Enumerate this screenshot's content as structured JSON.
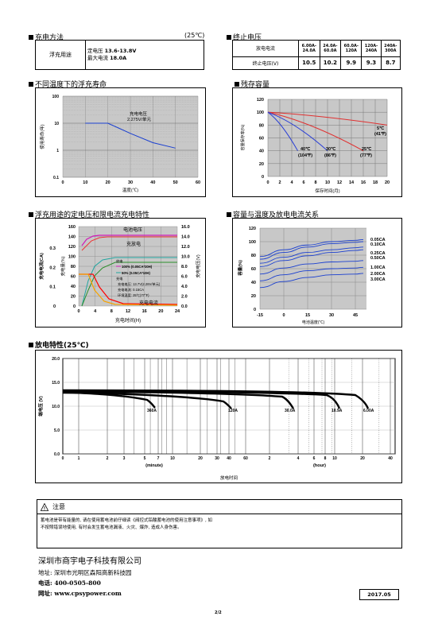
{
  "sections": {
    "float_charge": "充电方法",
    "float_charge_temp": "(25℃)",
    "end_voltage": "终止电压",
    "float_life": "不同温度下的浮充寿命",
    "remaining_capacity": "残存容量",
    "float_charge_curve": "浮充用途的定电压和限电流充电特性",
    "capacity_temp": "容量与温度及放电电流关系",
    "discharge": "放电特性(25℃)"
  },
  "charge_table": {
    "label": "浮充用途",
    "line1_prefix": "定电压",
    "line1_value": "13.6-13.8V",
    "line2_prefix": "最大电流",
    "line2_value": "18.0A"
  },
  "end_voltage_table": {
    "row1_label": "放电电流",
    "row2_label": "终止电压(V)",
    "currents": [
      "6.00A-24.0A",
      "24.0A-60.0A",
      "60.0A-120A",
      "120A-240A",
      "240A-300A"
    ],
    "voltages": [
      "10.5",
      "10.2",
      "9.9",
      "9.3",
      "8.7"
    ]
  },
  "chart_data": [
    {
      "type": "line",
      "ylabel": "使用寿命(年)",
      "xlabel": "温度(℃)",
      "x_ticks": [
        "0",
        "10",
        "20",
        "30",
        "40",
        "50",
        "60"
      ],
      "y_ticks": [
        "0.1",
        "1",
        "10",
        "100"
      ],
      "log_y": true,
      "annotation_line1": "充电电压",
      "annotation_line2": "2.275V/单元",
      "series": [
        {
          "x": [
            10,
            20,
            25,
            30,
            40,
            50
          ],
          "y": [
            10,
            10,
            6.5,
            4.2,
            1.9,
            1.2
          ]
        }
      ]
    },
    {
      "type": "line",
      "ylabel": "容量保存率(%)",
      "xlabel": "保存时间(月)",
      "x_ticks": [
        "0",
        "2",
        "4",
        "6",
        "8",
        "10",
        "12",
        "14",
        "16",
        "18",
        "20"
      ],
      "y_ticks": [
        "0",
        "20",
        "40",
        "60",
        "80",
        "100",
        "120"
      ],
      "series_labels": [
        {
          "t1": "5℃",
          "t2": "(41℉)"
        },
        {
          "t1": "25℃",
          "t2": "(77℉)"
        },
        {
          "t1": "30℃",
          "t2": "(86℉)"
        },
        {
          "t1": "40℃",
          "t2": "(104℉)"
        }
      ],
      "series": [
        {
          "x": [
            0,
            20
          ],
          "y": [
            100,
            80
          ]
        },
        {
          "x": [
            0,
            16
          ],
          "y": [
            100,
            40
          ]
        },
        {
          "x": [
            0,
            10
          ],
          "y": [
            100,
            40
          ]
        },
        {
          "x": [
            0,
            5
          ],
          "y": [
            100,
            40
          ]
        }
      ]
    },
    {
      "type": "line",
      "xlabel": "充电时间(H)",
      "ylabel_left_outer": "充电电流(CA)",
      "ylabel_left_inner": "充电量(%)",
      "ylabel_right": "充电电压(V)",
      "x_ticks": [
        "0",
        "4",
        "8",
        "12",
        "16",
        "20",
        "24"
      ],
      "y_ticks_cap": [
        "0",
        "20",
        "40",
        "60",
        "80",
        "100",
        "120",
        "140",
        "160"
      ],
      "y_ticks_ca": [
        "0",
        "0.1",
        "0.2",
        "0.3"
      ],
      "y_ticks_v": [
        "0.0",
        "2.0",
        "4.0",
        "6.0",
        "8.0",
        "10.0",
        "12.0",
        "14.0",
        "16.0"
      ],
      "label_voltage": "电池电压",
      "label_charge": "充放电",
      "label_current": "充电电流",
      "legend": {
        "l1": "放电",
        "l2": "100% (0.05CA*20H)",
        "l3": "50% (0.05CA*10H)",
        "l4": "充电",
        "l5": "充电电压: 13.7V(2.28V/单元)",
        "l6": "充电电流: 0.15CA",
        "l7": "环境温度: 25℃(77℉)"
      }
    },
    {
      "type": "line",
      "ylabel": "容量(%)",
      "xlabel": "电池温度(℃)",
      "x_ticks": [
        "-15",
        "0",
        "15",
        "30",
        "45"
      ],
      "y_ticks": [
        "0",
        "20",
        "40",
        "60",
        "80",
        "100",
        "120"
      ],
      "series_names": [
        "0.05CA",
        "0.10CA",
        "0.25CA",
        "0.50CA",
        "1.00CA",
        "2.00CA",
        "3.00CA"
      ],
      "series": [
        {
          "x": [
            -15,
            0,
            15,
            30,
            45,
            50
          ],
          "y": [
            78,
            88,
            95,
            100,
            102,
            103
          ]
        },
        {
          "x": [
            -15,
            0,
            15,
            30,
            45,
            50
          ],
          "y": [
            74,
            84,
            92,
            97,
            99,
            100
          ]
        },
        {
          "x": [
            -15,
            0,
            15,
            30,
            45,
            50
          ],
          "y": [
            68,
            77,
            84,
            88,
            91,
            92
          ]
        },
        {
          "x": [
            -15,
            0,
            15,
            30,
            45,
            50
          ],
          "y": [
            63,
            72,
            79,
            84,
            87,
            88
          ]
        },
        {
          "x": [
            -15,
            0,
            15,
            30,
            45,
            50
          ],
          "y": [
            52,
            61,
            67,
            70,
            71,
            72
          ]
        },
        {
          "x": [
            -15,
            0,
            15,
            30,
            45,
            50
          ],
          "y": [
            42,
            51,
            57,
            60,
            61,
            62
          ]
        },
        {
          "x": [
            -15,
            0,
            15,
            30,
            45,
            50
          ],
          "y": [
            32,
            41,
            47,
            51,
            52,
            53
          ]
        }
      ]
    },
    {
      "type": "line",
      "ylabel": "端电压 (V)",
      "xlabel": "放电时间",
      "x_ticks_min": [
        "0",
        "1",
        "2",
        "3",
        "5",
        "7",
        "10",
        "20",
        "30",
        "40",
        "60"
      ],
      "x_ticks_hr": [
        "2",
        "4",
        "6",
        "8",
        "10",
        "20",
        "40"
      ],
      "minute_label": "(minute)",
      "hour_label": "(hour)",
      "y_ticks": [
        "0.0",
        "5.0",
        "10.0",
        "15.0",
        "20.0"
      ],
      "series_names": [
        "360A",
        "120A",
        "30.0A",
        "10.9A",
        "6.00A"
      ]
    }
  ],
  "note": {
    "title": "注意",
    "line1": "蓄电池是带有能量的, 请在使用蓄电池前仔细读《阀控式铅酸蓄电池的使用注意事项》, 如",
    "line2": "不按照错误地使用, 有时会发生蓄电池漏液、火灾、爆炸, 造成人身伤害。"
  },
  "company": {
    "name": "深圳市商宇电子科技有限公司",
    "address": "地址: 深圳市光明区森阳高新科技园",
    "phone": "电话: 400-0505-800",
    "website": "网址: www.cpsypower.com"
  },
  "date": "2017.05",
  "page_number": "2/2"
}
